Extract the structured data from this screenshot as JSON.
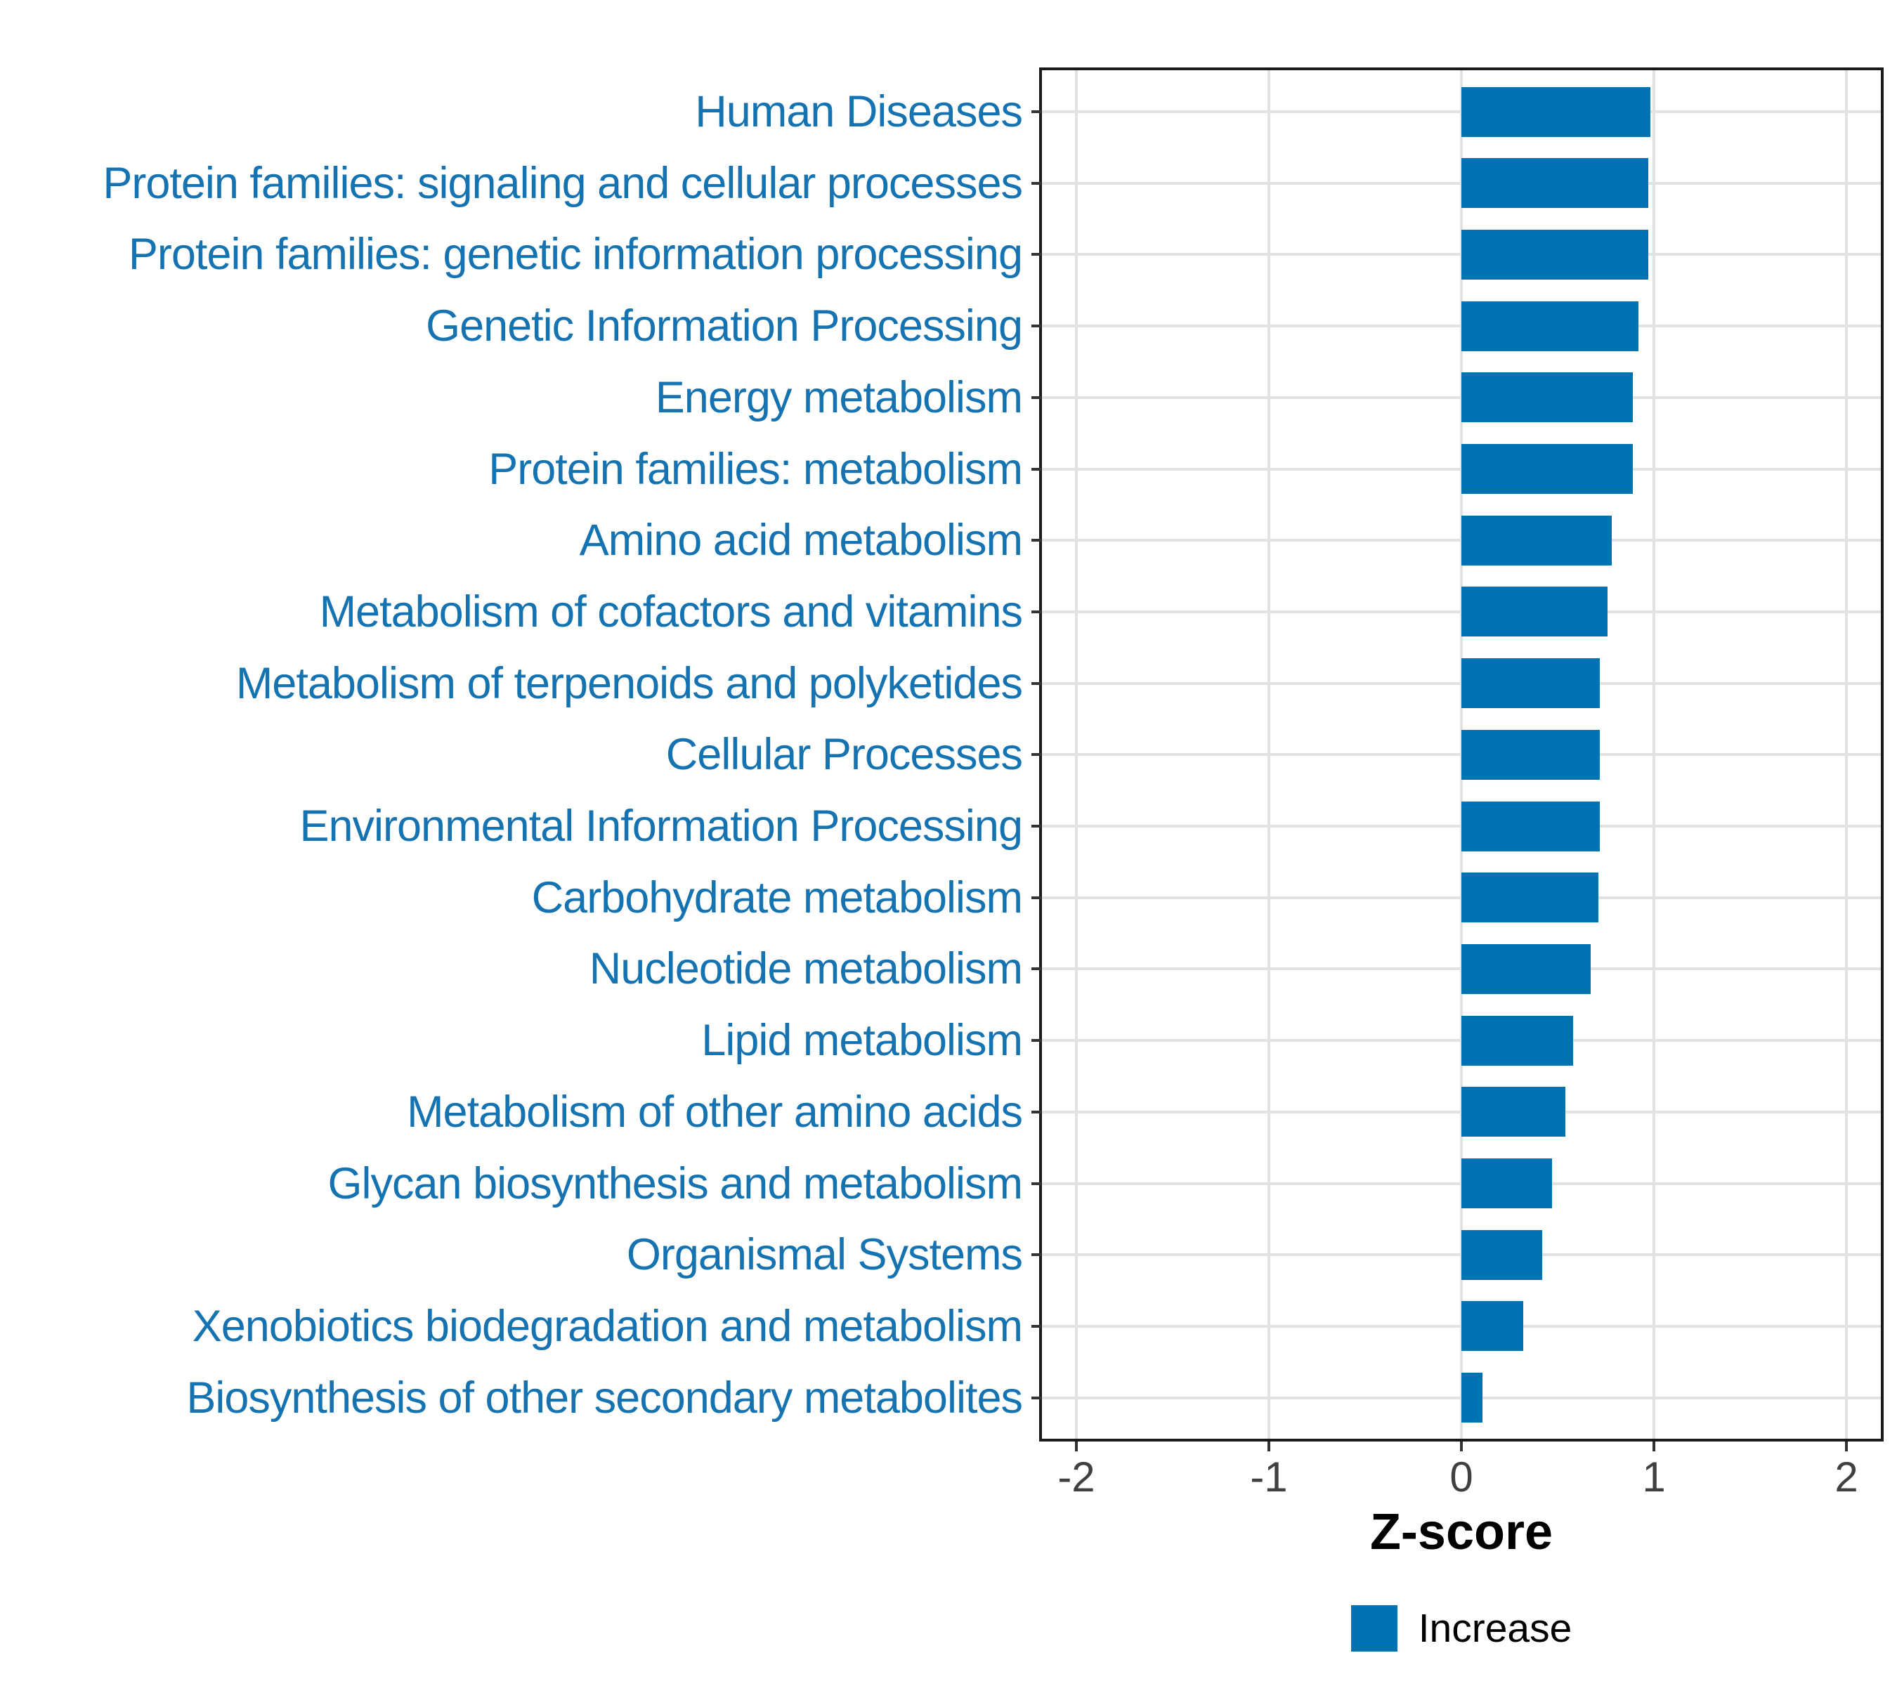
{
  "chart_data": {
    "type": "bar",
    "orientation": "horizontal",
    "xlabel": "Z-score",
    "ylabel": "",
    "xlim": [
      -2.18,
      2.18
    ],
    "x_ticks": [
      -2,
      -1,
      0,
      1,
      2
    ],
    "x_tick_labels": [
      "-2",
      "-1",
      "0",
      "1",
      "2"
    ],
    "grid": true,
    "legend_position": "bottom-center",
    "legend_label": "Increase",
    "series_name": "Increase",
    "categories": [
      "Human Diseases",
      "Protein families: signaling and cellular processes",
      "Protein families: genetic information processing",
      "Genetic Information Processing",
      "Energy metabolism",
      "Protein families: metabolism",
      "Amino acid metabolism",
      "Metabolism of cofactors and vitamins",
      "Metabolism of terpenoids and polyketides",
      "Cellular Processes",
      "Environmental Information Processing",
      "Carbohydrate metabolism",
      "Nucleotide metabolism",
      "Lipid metabolism",
      "Metabolism of other amino acids",
      "Glycan biosynthesis and metabolism",
      "Organismal Systems",
      "Xenobiotics biodegradation and metabolism",
      "Biosynthesis of other secondary metabolites"
    ],
    "values": [
      0.98,
      0.97,
      0.97,
      0.92,
      0.89,
      0.89,
      0.78,
      0.76,
      0.72,
      0.72,
      0.72,
      0.71,
      0.67,
      0.58,
      0.54,
      0.47,
      0.42,
      0.32,
      0.11
    ],
    "colors": {
      "bar": "#0072B2",
      "category_label": "#1673B1",
      "gridline": "#e2e2e2",
      "panel_border": "#1a1a1a",
      "tick": "#333333",
      "x_tick_label": "#404040",
      "axis_title": "#000000"
    }
  }
}
